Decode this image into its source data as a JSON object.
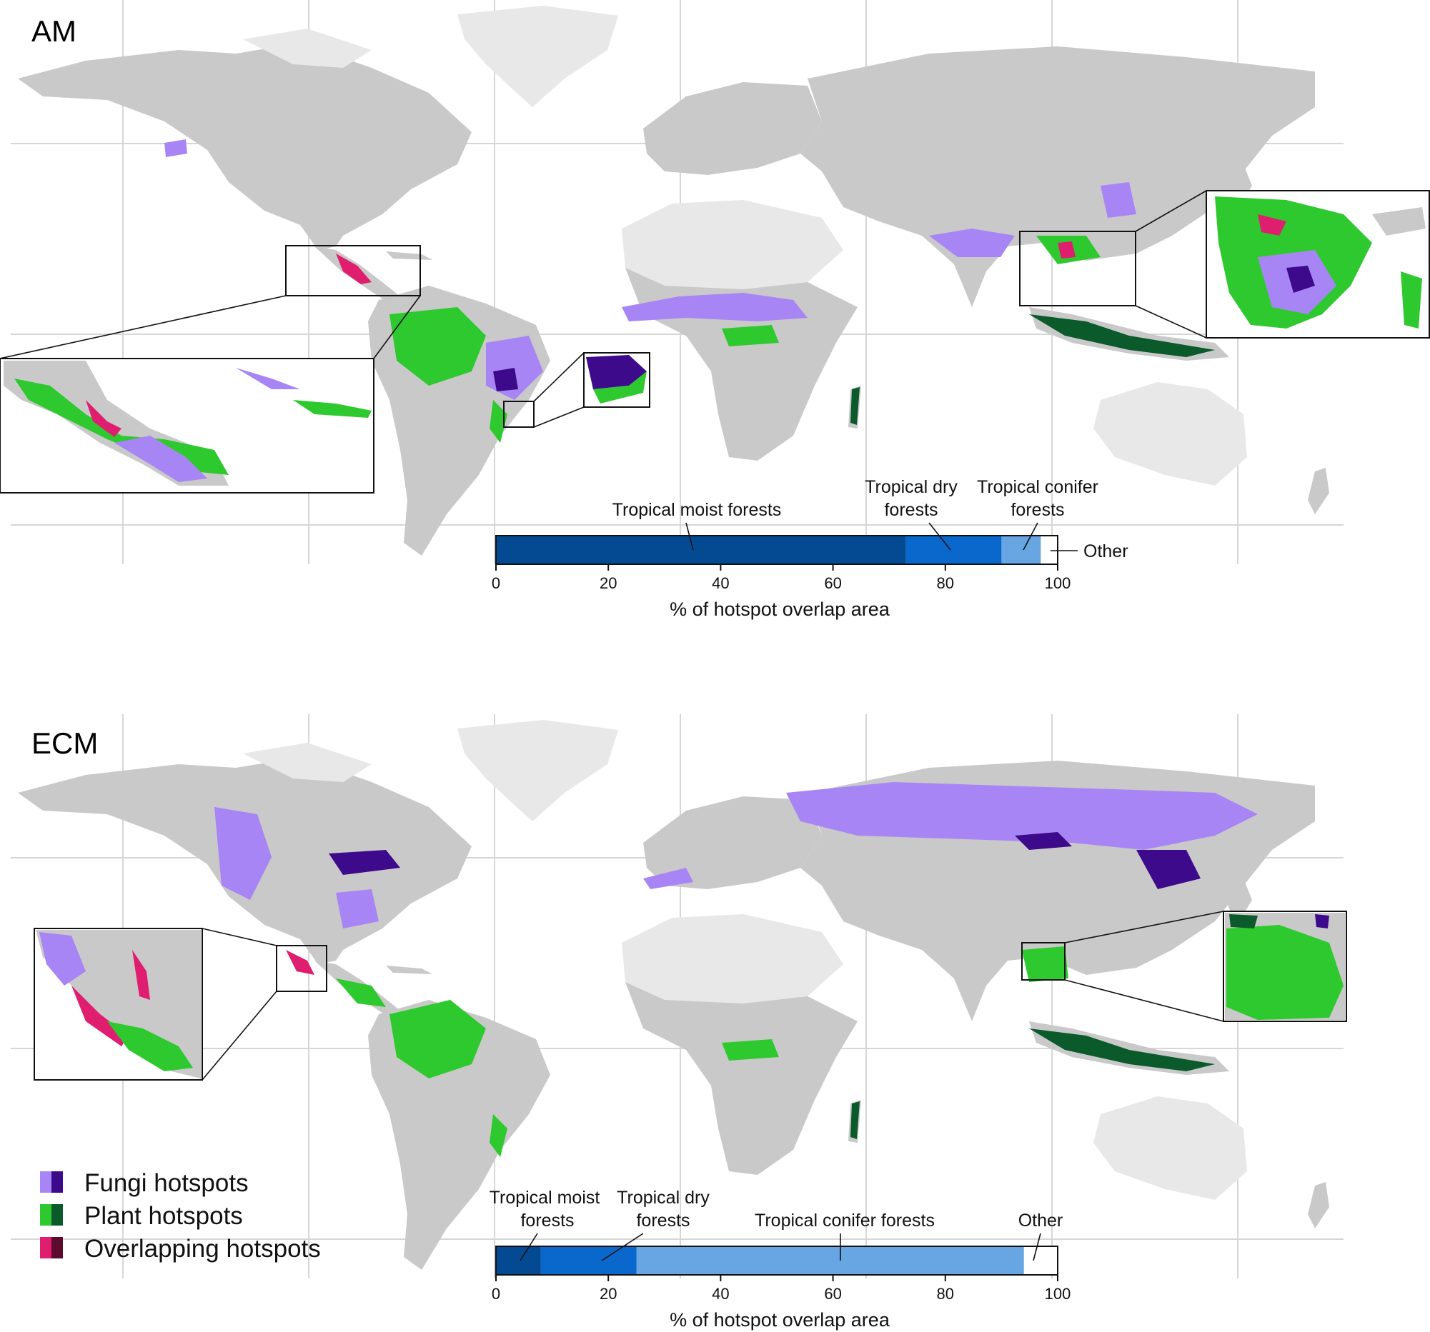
{
  "panels": [
    {
      "label": "AM",
      "bar": {
        "segments": [
          {
            "name": "Tropical moist forests",
            "start": 0,
            "end": 73,
            "color": "#044a93"
          },
          {
            "name": "Tropical dry forests",
            "start": 73,
            "end": 90,
            "color": "#0a67cc"
          },
          {
            "name": "Tropical conifer forests",
            "start": 90,
            "end": 97,
            "color": "#67a6e2"
          },
          {
            "name": "Other",
            "start": 97,
            "end": 100,
            "color": "#ffffff"
          }
        ],
        "annotations": [
          {
            "lines": [
              "Tropical moist forests"
            ]
          },
          {
            "lines": [
              "Tropical dry",
              "forests"
            ]
          },
          {
            "lines": [
              "Tropical conifer",
              "forests"
            ]
          },
          {
            "lines": [
              "Other"
            ]
          }
        ],
        "ticks": [
          "0",
          "20",
          "40",
          "60",
          "80",
          "100"
        ],
        "axis_title": "% of hotspot overlap area"
      }
    },
    {
      "label": "ECM",
      "bar": {
        "segments": [
          {
            "name": "Tropical moist forests",
            "start": 0,
            "end": 8,
            "color": "#044a93"
          },
          {
            "name": "Tropical dry forests",
            "start": 8,
            "end": 25,
            "color": "#0a67cc"
          },
          {
            "name": "Tropical conifer forests",
            "start": 25,
            "end": 94,
            "color": "#67a6e2"
          },
          {
            "name": "Other",
            "start": 94,
            "end": 100,
            "color": "#ffffff"
          }
        ],
        "annotations": [
          {
            "lines": [
              "Tropical moist",
              "forests"
            ]
          },
          {
            "lines": [
              "Tropical dry",
              "forests"
            ]
          },
          {
            "lines": [
              "Tropical conifer forests"
            ]
          },
          {
            "lines": [
              "Other"
            ]
          }
        ],
        "ticks": [
          "0",
          "20",
          "40",
          "60",
          "80",
          "100"
        ],
        "axis_title": "% of hotspot overlap area"
      }
    }
  ],
  "legend": [
    {
      "label": "Fungi hotspots",
      "light": "#a885f5",
      "dark": "#3d0a8c"
    },
    {
      "label": "Plant hotspots",
      "light": "#2ec92e",
      "dark": "#0b5a2c"
    },
    {
      "label": "Overlapping hotspots",
      "light": "#e01e6f",
      "dark": "#5c0a2e"
    }
  ],
  "colors": {
    "land": "#c9c9c9",
    "land_light": "#e8e8e8",
    "graticule": "#d6d6d6"
  }
}
